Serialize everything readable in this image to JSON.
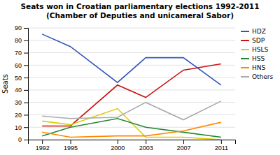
{
  "chart_data": {
    "type": "line",
    "title": "Seats won in Croatian parliamentary elections 1992-2011\n(Chamber of Deputies and unicameral Sabor)",
    "y_label": "Seats",
    "x": [
      1992,
      1995,
      2000,
      2003,
      2007,
      2011
    ],
    "series": [
      {
        "name": "HDZ",
        "color": "#3355bb",
        "values": [
          85,
          75,
          46,
          66,
          66,
          44
        ]
      },
      {
        "name": "SDP",
        "color": "#cc1111",
        "values": [
          11,
          11,
          44,
          34,
          56,
          61
        ]
      },
      {
        "name": "HSLS",
        "color": "#ddcc00",
        "values": [
          15,
          12,
          25,
          2,
          2,
          0
        ]
      },
      {
        "name": "HSS",
        "color": "#228833",
        "values": [
          3,
          10,
          17,
          10,
          6,
          2
        ]
      },
      {
        "name": "HNS",
        "color": "#ff8800",
        "values": [
          6,
          2,
          3,
          3,
          7,
          14
        ]
      },
      {
        "name": "Others",
        "color": "#aaaaaa",
        "values": [
          19,
          17,
          18,
          30,
          16,
          31
        ]
      }
    ],
    "xlim": [
      1990.5,
      2012.5
    ],
    "xticks": [
      1992,
      1995,
      2000,
      2003,
      2007,
      2011
    ],
    "ylim": [
      0,
      90
    ],
    "yticks": [
      0,
      10,
      20,
      30,
      40,
      50,
      60,
      70,
      80,
      90
    ],
    "grid": true,
    "legend": "right"
  }
}
